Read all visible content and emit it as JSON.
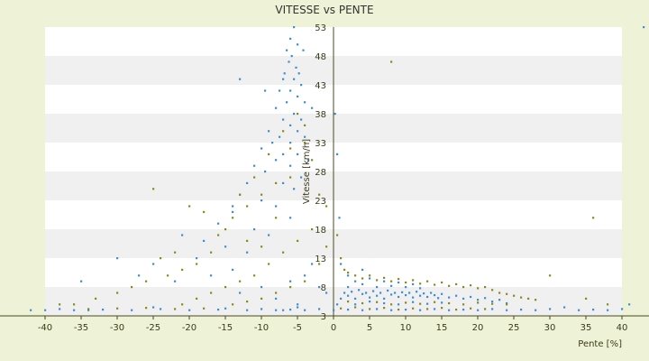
{
  "chart_data": {
    "type": "scatter",
    "title": "VITESSE vs PENTE",
    "xlabel": "Pente [%]",
    "ylabel": "Vitesse [km/h]",
    "xlim": [
      -40,
      40
    ],
    "ylim": [
      3,
      53
    ],
    "x_ticks": [
      "-40",
      "-35",
      "-30",
      "-25",
      "-20",
      "-15",
      "-10",
      "-5",
      "0",
      "5",
      "10",
      "15",
      "20",
      "25",
      "30",
      "35",
      "40"
    ],
    "y_ticks": [
      "53",
      "48",
      "43",
      "38",
      "33",
      "28",
      "23",
      "18",
      "13",
      "8",
      "3"
    ],
    "grid": "horizontal bands",
    "legend": "none",
    "colors": {
      "blue": "#3a8fd6",
      "olive": "#8a8a1a",
      "band": "#f0f0f0",
      "axis": "#4a4a20"
    },
    "series": [
      {
        "color": "blue",
        "points": [
          [
            -5.5,
            53
          ],
          [
            -6,
            51
          ],
          [
            -5,
            50
          ],
          [
            -6.5,
            49
          ],
          [
            -5.8,
            48
          ],
          [
            -6.2,
            47
          ],
          [
            -5.2,
            46
          ],
          [
            -4.8,
            45
          ],
          [
            -6.8,
            45
          ],
          [
            -7,
            44
          ],
          [
            -5.5,
            44
          ],
          [
            -4.5,
            43
          ],
          [
            -6,
            42
          ],
          [
            -7.5,
            42
          ],
          [
            -5,
            41
          ],
          [
            -4,
            40
          ],
          [
            -6.5,
            40
          ],
          [
            -8,
            39
          ],
          [
            -5.5,
            38
          ],
          [
            -7,
            37
          ],
          [
            -4.5,
            37
          ],
          [
            -6,
            36
          ],
          [
            -9,
            35
          ],
          [
            -5,
            35
          ],
          [
            -7.5,
            34
          ],
          [
            -4,
            34
          ],
          [
            -8.5,
            33
          ],
          [
            -6,
            33
          ],
          [
            -10,
            32
          ],
          [
            -5,
            31
          ],
          [
            -7,
            31
          ],
          [
            -3.5,
            30
          ],
          [
            -8,
            30
          ],
          [
            -11,
            29
          ],
          [
            -6,
            29
          ],
          [
            -9.5,
            28
          ],
          [
            -4.5,
            27
          ],
          [
            -12,
            26
          ],
          [
            -7,
            26
          ],
          [
            -5.5,
            25
          ],
          [
            -13,
            24
          ],
          [
            -10,
            23
          ],
          [
            -8,
            22
          ],
          [
            -14,
            21
          ],
          [
            -6,
            20
          ],
          [
            -16,
            19
          ],
          [
            -11,
            18
          ],
          [
            -9,
            17
          ],
          [
            -21,
            17
          ],
          [
            -18,
            16
          ],
          [
            -15,
            15
          ],
          [
            -12,
            14
          ],
          [
            -30,
            13
          ],
          [
            -19,
            13
          ],
          [
            -25,
            12
          ],
          [
            -14,
            11
          ],
          [
            -17,
            10
          ],
          [
            -27,
            10
          ],
          [
            -22,
            9
          ],
          [
            -35,
            9
          ],
          [
            -10,
            8
          ],
          [
            -13,
            7
          ],
          [
            -8,
            6
          ],
          [
            -6,
            9
          ],
          [
            -4,
            10
          ],
          [
            -3,
            12
          ],
          [
            -2,
            8
          ],
          [
            -1,
            7
          ],
          [
            -5,
            5
          ],
          [
            -7,
            4
          ],
          [
            -14,
            22
          ],
          [
            -3,
            39
          ],
          [
            -13,
            44
          ],
          [
            -9.5,
            42
          ],
          [
            -4.2,
            49
          ],
          [
            0.5,
            5
          ],
          [
            1,
            6
          ],
          [
            1.5,
            7
          ],
          [
            2,
            6.5
          ],
          [
            2.5,
            7.2
          ],
          [
            3,
            6
          ],
          [
            3.5,
            7.5
          ],
          [
            4,
            6.8
          ],
          [
            4.5,
            7
          ],
          [
            5,
            6.2
          ],
          [
            5.5,
            7.3
          ],
          [
            6,
            6.5
          ],
          [
            6.5,
            7
          ],
          [
            7,
            6
          ],
          [
            7.5,
            7.4
          ],
          [
            8,
            6.7
          ],
          [
            8.5,
            7
          ],
          [
            9,
            6.3
          ],
          [
            9.5,
            7.1
          ],
          [
            10,
            6.6
          ],
          [
            10.5,
            7
          ],
          [
            11,
            6.2
          ],
          [
            11.5,
            7.2
          ],
          [
            12,
            6.5
          ],
          [
            12.5,
            6.9
          ],
          [
            13,
            6.3
          ],
          [
            13.5,
            7
          ],
          [
            14,
            6.6
          ],
          [
            14.5,
            6.1
          ],
          [
            15,
            6.8
          ],
          [
            16,
            6.2
          ],
          [
            17,
            6.5
          ],
          [
            18,
            6
          ],
          [
            19,
            6.3
          ],
          [
            20,
            5.8
          ],
          [
            21,
            6.1
          ],
          [
            22,
            5.5
          ],
          [
            23,
            5.8
          ],
          [
            24,
            5.2
          ],
          [
            2,
            8
          ],
          [
            3,
            9
          ],
          [
            4,
            8.5
          ],
          [
            5,
            9.5
          ],
          [
            6,
            8
          ],
          [
            7,
            9
          ],
          [
            8,
            8.2
          ],
          [
            9,
            8.8
          ],
          [
            10,
            8
          ],
          [
            11,
            8.5
          ],
          [
            12,
            7.8
          ],
          [
            3,
            5
          ],
          [
            5,
            5.5
          ],
          [
            7,
            5.2
          ],
          [
            9,
            5
          ],
          [
            11,
            5.4
          ],
          [
            13,
            5.1
          ],
          [
            15,
            5.3
          ],
          [
            2,
            10
          ],
          [
            4,
            11
          ],
          [
            1,
            12
          ],
          [
            0.8,
            20
          ],
          [
            0.5,
            31
          ],
          [
            0.2,
            38
          ],
          [
            -40,
            4
          ],
          [
            -42,
            4
          ],
          [
            -38,
            4.2
          ],
          [
            -36,
            4
          ],
          [
            -34,
            4
          ],
          [
            -32,
            4.1
          ],
          [
            -28,
            4
          ],
          [
            -24,
            4.2
          ],
          [
            -20,
            4
          ],
          [
            -16,
            4.1
          ],
          [
            -12,
            4
          ],
          [
            -10,
            4.2
          ],
          [
            -8,
            4
          ],
          [
            -6,
            4.1
          ],
          [
            -4,
            4
          ],
          [
            -2,
            4.2
          ],
          [
            0,
            4
          ],
          [
            2,
            4.1
          ],
          [
            4,
            4
          ],
          [
            6,
            4.2
          ],
          [
            8,
            4
          ],
          [
            10,
            4.1
          ],
          [
            12,
            4
          ],
          [
            14,
            4.2
          ],
          [
            16,
            4
          ],
          [
            18,
            4.1
          ],
          [
            20,
            4
          ],
          [
            22,
            4.2
          ],
          [
            24,
            4
          ],
          [
            26,
            4.1
          ],
          [
            28,
            4
          ],
          [
            30,
            4.2
          ],
          [
            32,
            4.5
          ],
          [
            34,
            4
          ],
          [
            36,
            4.1
          ],
          [
            38,
            4
          ],
          [
            40,
            4.2
          ],
          [
            41,
            5
          ],
          [
            43,
            53
          ],
          [
            -25,
            4.5
          ],
          [
            -15,
            4.3
          ],
          [
            -5,
            4.5
          ]
        ]
      },
      {
        "color": "olive",
        "points": [
          [
            8,
            47
          ],
          [
            36,
            20
          ],
          [
            -25,
            25
          ],
          [
            -20,
            22
          ],
          [
            -18,
            21
          ],
          [
            -15,
            18
          ],
          [
            -12,
            16
          ],
          [
            -10,
            15
          ],
          [
            -8,
            20
          ],
          [
            -6,
            27
          ],
          [
            -4,
            33
          ],
          [
            -3,
            30
          ],
          [
            -5,
            38
          ],
          [
            -7,
            35
          ],
          [
            -9,
            31
          ],
          [
            -11,
            27
          ],
          [
            -13,
            24
          ],
          [
            -14,
            20
          ],
          [
            -16,
            17
          ],
          [
            -17,
            14
          ],
          [
            -19,
            12
          ],
          [
            -21,
            11
          ],
          [
            -23,
            10
          ],
          [
            -26,
            9
          ],
          [
            -28,
            8
          ],
          [
            -30,
            7
          ],
          [
            -33,
            6
          ],
          [
            -36,
            5
          ],
          [
            -38,
            5
          ],
          [
            -22,
            14
          ],
          [
            -24,
            13
          ],
          [
            -12,
            22
          ],
          [
            -10,
            24
          ],
          [
            -8,
            26
          ],
          [
            -6,
            32
          ],
          [
            -4,
            36
          ],
          [
            -2,
            24
          ],
          [
            -1,
            22
          ],
          [
            -3,
            18
          ],
          [
            -5,
            16
          ],
          [
            -7,
            14
          ],
          [
            -9,
            12
          ],
          [
            -11,
            10
          ],
          [
            -13,
            9
          ],
          [
            -15,
            8
          ],
          [
            -17,
            7
          ],
          [
            -19,
            6
          ],
          [
            -21,
            5
          ],
          [
            0.5,
            17
          ],
          [
            1,
            13
          ],
          [
            1.5,
            11
          ],
          [
            2,
            10.5
          ],
          [
            3,
            10
          ],
          [
            4,
            9.5
          ],
          [
            5,
            10
          ],
          [
            6,
            9.2
          ],
          [
            7,
            9.6
          ],
          [
            8,
            9
          ],
          [
            9,
            9.4
          ],
          [
            10,
            8.8
          ],
          [
            11,
            9.2
          ],
          [
            12,
            8.6
          ],
          [
            13,
            9
          ],
          [
            14,
            8.4
          ],
          [
            15,
            8.8
          ],
          [
            16,
            8.2
          ],
          [
            17,
            8.5
          ],
          [
            18,
            8
          ],
          [
            19,
            8.3
          ],
          [
            20,
            7.8
          ],
          [
            21,
            8
          ],
          [
            22,
            7.5
          ],
          [
            23,
            7
          ],
          [
            24,
            6.8
          ],
          [
            25,
            6.5
          ],
          [
            26,
            6.2
          ],
          [
            27,
            6
          ],
          [
            28,
            5.8
          ],
          [
            30,
            10
          ],
          [
            35,
            6
          ],
          [
            38,
            5
          ],
          [
            2,
            5.5
          ],
          [
            4,
            5.2
          ],
          [
            6,
            5.4
          ],
          [
            8,
            5
          ],
          [
            10,
            5.3
          ],
          [
            12,
            5.1
          ],
          [
            14,
            5.4
          ],
          [
            16,
            5.2
          ],
          [
            18,
            5
          ],
          [
            20,
            5.3
          ],
          [
            22,
            5.1
          ],
          [
            24,
            5
          ],
          [
            -2,
            12
          ],
          [
            -1,
            15
          ],
          [
            -4,
            9
          ],
          [
            -6,
            8
          ],
          [
            -8,
            7
          ],
          [
            -10,
            6
          ],
          [
            -12,
            5.5
          ],
          [
            -14,
            5
          ],
          [
            1,
            4.3
          ],
          [
            3,
            4.5
          ],
          [
            5,
            4.2
          ],
          [
            7,
            4.4
          ],
          [
            9,
            4.1
          ],
          [
            11,
            4.3
          ],
          [
            13,
            4.2
          ],
          [
            15,
            4.4
          ],
          [
            17,
            4.1
          ],
          [
            19,
            4.3
          ],
          [
            21,
            4.2
          ],
          [
            -18,
            4.3
          ],
          [
            -22,
            4.2
          ],
          [
            -26,
            4.4
          ],
          [
            -30,
            4.3
          ],
          [
            -34,
            4.2
          ]
        ]
      }
    ]
  }
}
